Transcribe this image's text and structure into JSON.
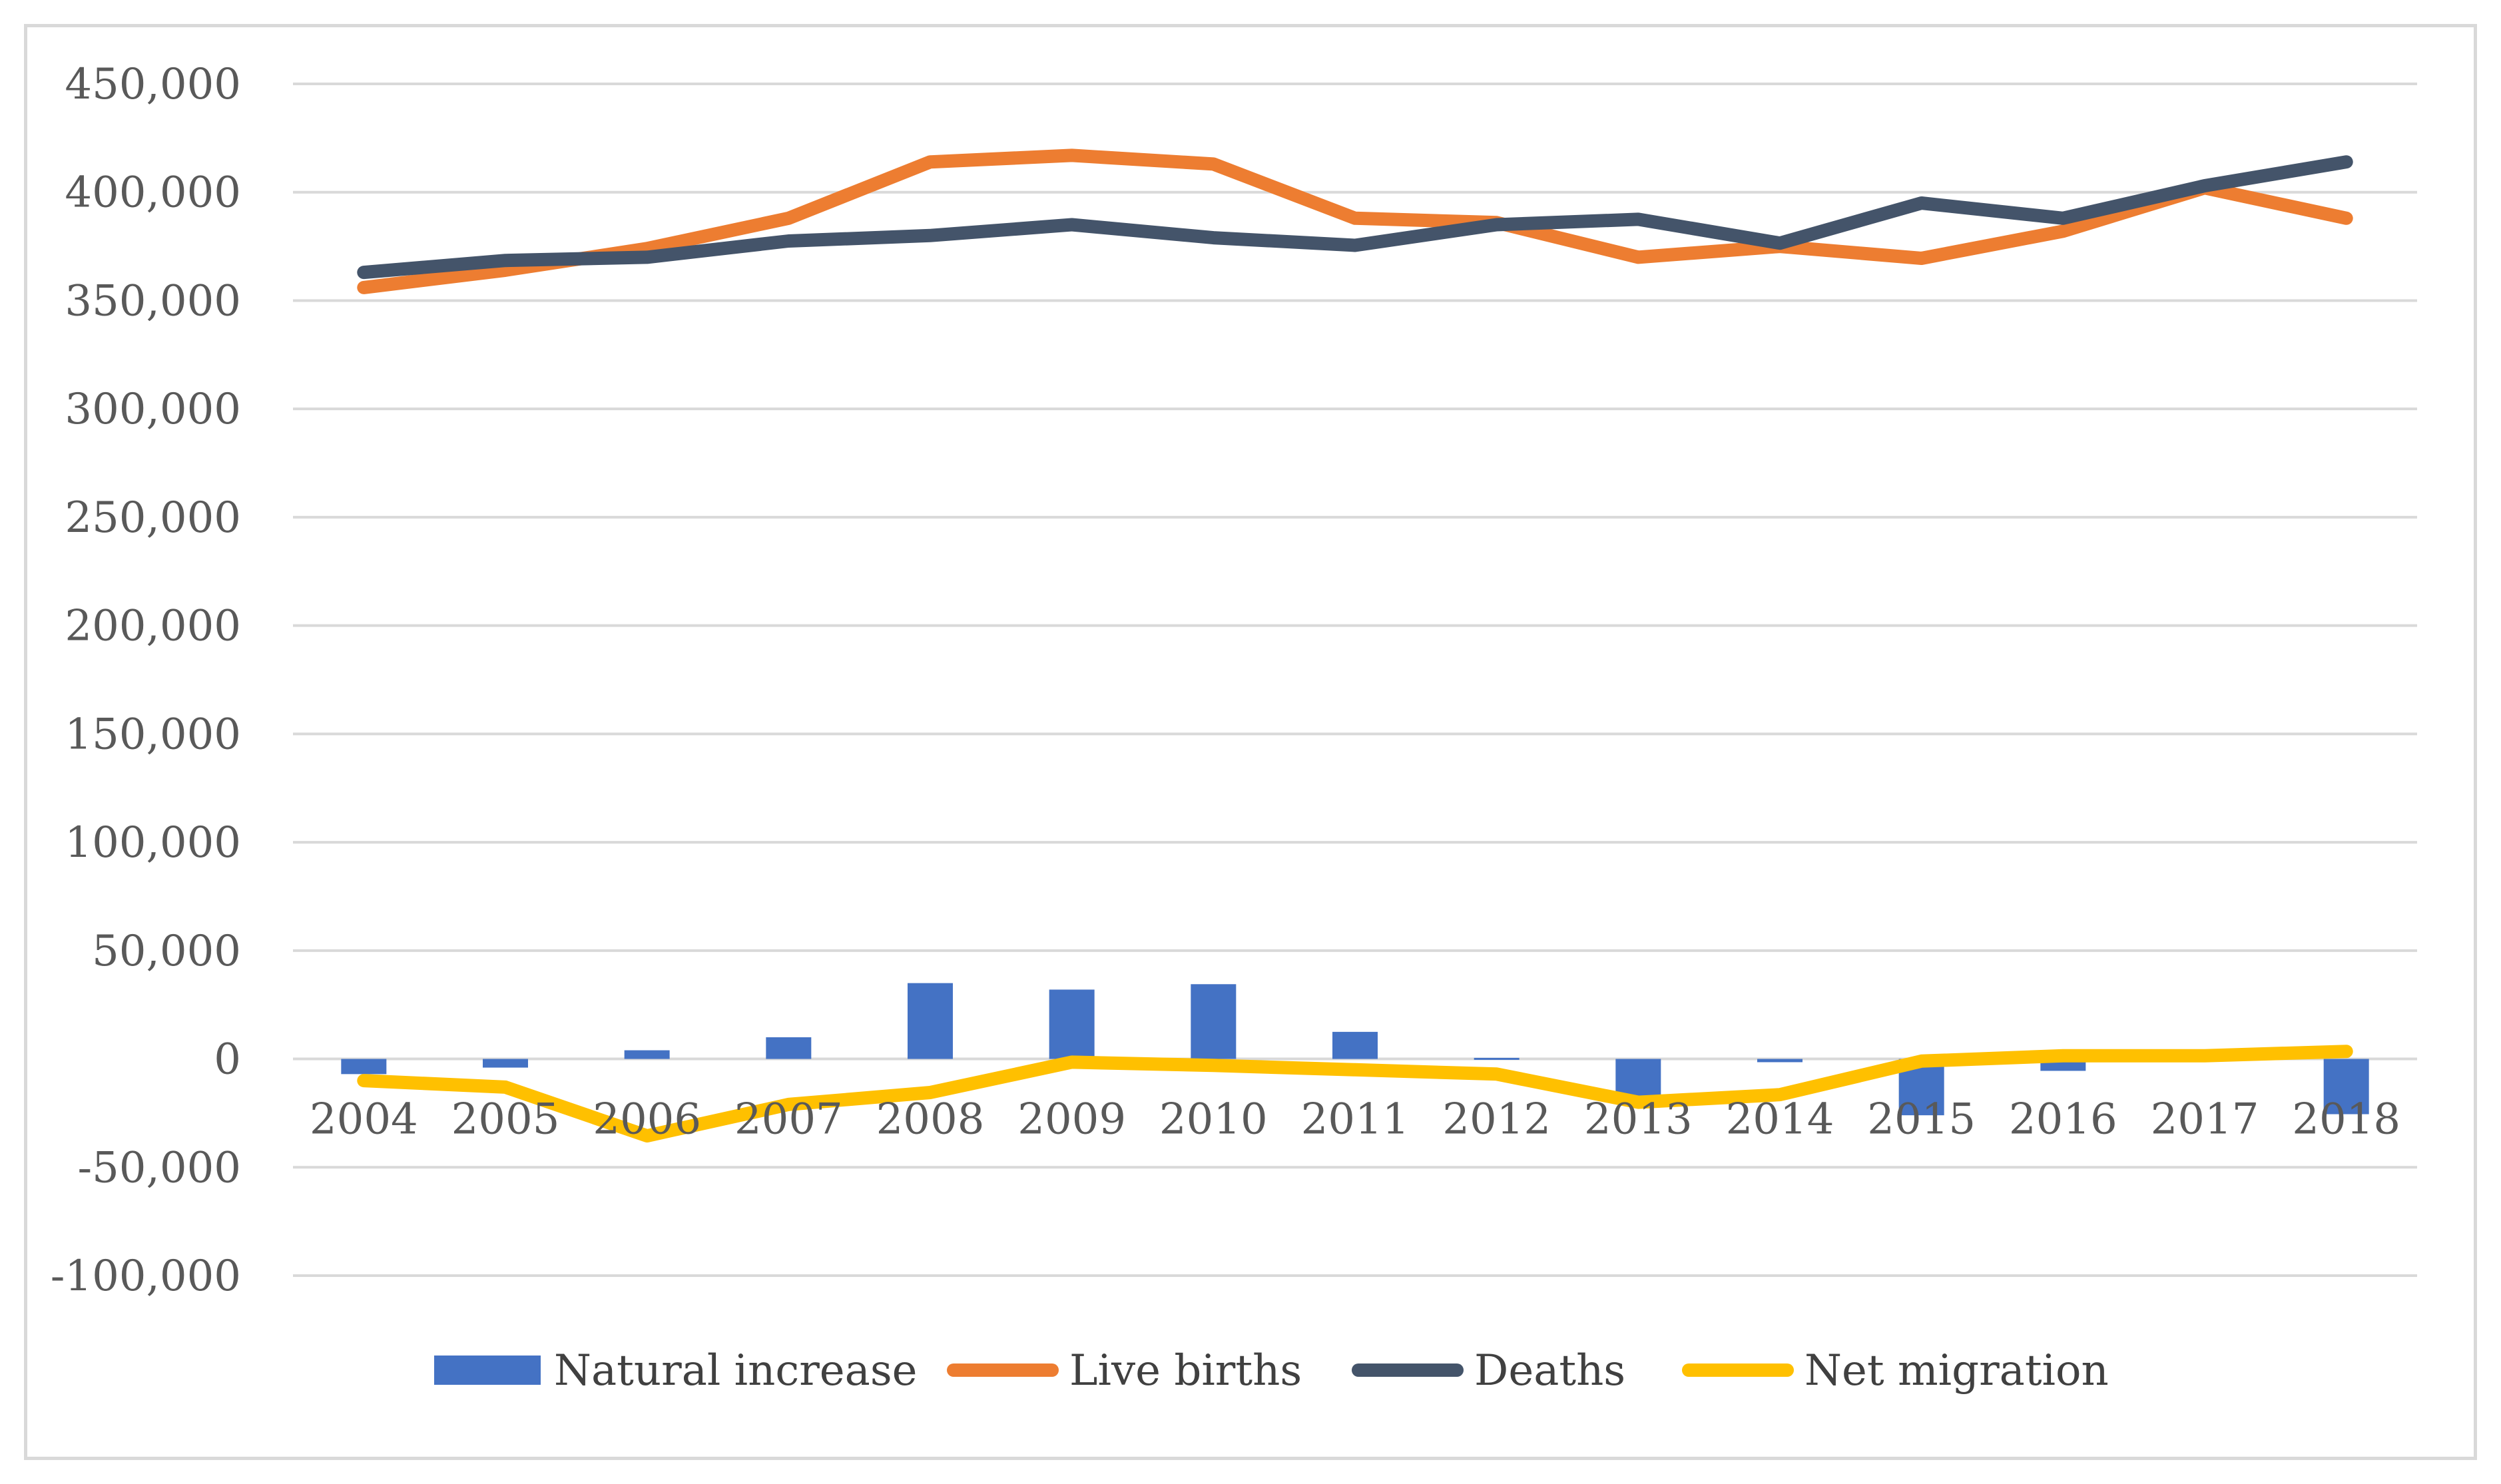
{
  "chart_data": {
    "type": "bar+line",
    "title": "",
    "xlabel": "",
    "ylabel": "",
    "ylim": [
      -100000,
      450000
    ],
    "yticks": [
      450000,
      400000,
      350000,
      300000,
      250000,
      200000,
      150000,
      100000,
      50000,
      0,
      -50000,
      -100000
    ],
    "ytick_labels": [
      "450,000",
      "400,000",
      "350,000",
      "300,000",
      "250,000",
      "200,000",
      "150,000",
      "100,000",
      "50,000",
      "0",
      "-50,000",
      "-100,000"
    ],
    "grid": true,
    "legend_position": "bottom",
    "categories": [
      "2004",
      "2005",
      "2006",
      "2007",
      "2008",
      "2009",
      "2010",
      "2011",
      "2012",
      "2013",
      "2014",
      "2015",
      "2016",
      "2017",
      "2018"
    ],
    "series": [
      {
        "name": "Natural increase",
        "kind": "bar",
        "color": "#4472c4",
        "values": [
          -7000,
          -4000,
          4000,
          10000,
          35000,
          32000,
          34500,
          12500,
          500,
          -19000,
          -1500,
          -26000,
          -5500,
          0,
          -25500
        ]
      },
      {
        "name": "Live births",
        "kind": "line",
        "color": "#ed7d31",
        "values": [
          356000,
          364000,
          374000,
          388000,
          414000,
          417000,
          413000,
          388000,
          386000,
          370000,
          375000,
          369500,
          382000,
          402000,
          388000
        ]
      },
      {
        "name": "Deaths",
        "kind": "line",
        "color": "#44546a",
        "values": [
          363000,
          368500,
          370000,
          377500,
          380000,
          385000,
          379000,
          375500,
          385000,
          387500,
          376500,
          395000,
          388000,
          403000,
          414000
        ]
      },
      {
        "name": "Net migration",
        "kind": "line",
        "color": "#ffc000",
        "values": [
          -10000,
          -13000,
          -35500,
          -21000,
          -15500,
          -1500,
          -3000,
          -5000,
          -7000,
          -20000,
          -16500,
          -1000,
          1500,
          1500,
          3500
        ]
      }
    ]
  }
}
